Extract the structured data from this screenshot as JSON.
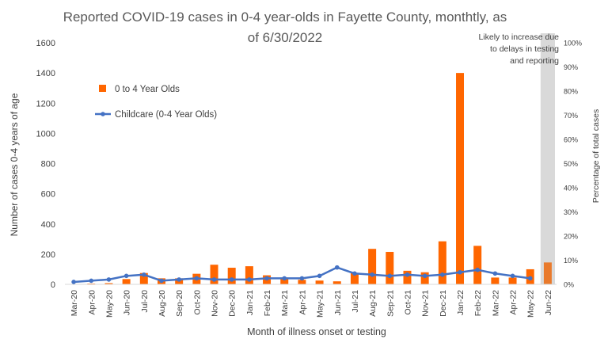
{
  "chart_data": {
    "type": "bar",
    "title_line1": "Reported COVID-19 cases in 0-4 year-olds in Fayette County, monthtly, as",
    "title_line2": "of 6/30/2022",
    "xlabel": "Month of illness onset or testing",
    "ylabel": "Number of cases 0-4 years of age",
    "y2label": "Percentage of total cases",
    "annotation": [
      "Likely to increase due",
      "to delays in testing",
      "and reporting"
    ],
    "ylim": [
      0,
      1600
    ],
    "y2lim": [
      0,
      100
    ],
    "yticks": [
      "0",
      "200",
      "400",
      "600",
      "800",
      "1000",
      "1200",
      "1400",
      "1600"
    ],
    "y2ticks": [
      "0%",
      "10%",
      "20%",
      "30%",
      "40%",
      "50%",
      "60%",
      "70%",
      "80%",
      "90%",
      "100%"
    ],
    "categories": [
      "Mar-20",
      "Apr-20",
      "May-20",
      "Jun-20",
      "Jul-20",
      "Aug-20",
      "Sep-20",
      "Oct-20",
      "Nov-20",
      "Dec-20",
      "Jan-21",
      "Feb-21",
      "Mar-21",
      "Apr-21",
      "May-21",
      "Jun-21",
      "Jul-21",
      "Aug-21",
      "Sep-21",
      "Oct-21",
      "Nov-21",
      "Dec-21",
      "Jan-22",
      "Feb-22",
      "Mar-22",
      "Apr-22",
      "May-22",
      "Jun-22"
    ],
    "series": [
      {
        "name": "0 to 4 Year Olds",
        "type": "bar",
        "axis": "left",
        "color": "#ff6600",
        "last_bar_color": "#e97a2c",
        "values": [
          2,
          5,
          8,
          35,
          75,
          40,
          40,
          70,
          130,
          110,
          120,
          60,
          45,
          30,
          25,
          20,
          75,
          235,
          215,
          90,
          80,
          285,
          1400,
          255,
          45,
          45,
          100,
          145
        ]
      },
      {
        "name": "Childcare (0-4 Year Olds)",
        "type": "line",
        "axis": "right",
        "color": "#4472c4",
        "values": [
          1,
          1.5,
          2,
          3.5,
          4,
          1.5,
          2,
          2.5,
          2,
          2,
          2,
          2.5,
          2.5,
          2.5,
          3.5,
          7,
          4.5,
          4,
          3.5,
          4,
          3.5,
          4,
          5,
          6,
          4.5,
          3.5,
          2.5,
          null
        ]
      }
    ],
    "shaded_category": "Jun-22",
    "shade_color": "#d9d9d9",
    "grid": false,
    "legend_position": "upper-left"
  }
}
